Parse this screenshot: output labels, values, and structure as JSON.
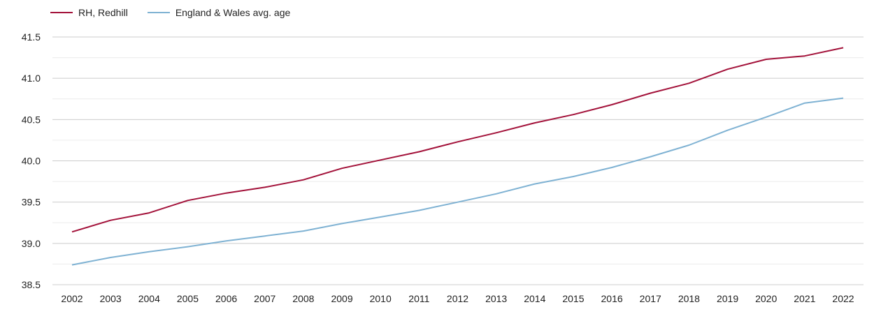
{
  "chart_data": {
    "type": "line",
    "title": "",
    "xlabel": "",
    "ylabel": "",
    "categories": [
      "2002",
      "2003",
      "2004",
      "2005",
      "2006",
      "2007",
      "2008",
      "2009",
      "2010",
      "2011",
      "2012",
      "2013",
      "2014",
      "2015",
      "2016",
      "2017",
      "2018",
      "2019",
      "2020",
      "2021",
      "2022"
    ],
    "series": [
      {
        "name": "RH, Redhill",
        "color": "#a3123a",
        "values": [
          39.14,
          39.28,
          39.37,
          39.52,
          39.61,
          39.68,
          39.77,
          39.91,
          40.01,
          40.11,
          40.23,
          40.34,
          40.46,
          40.56,
          40.68,
          40.82,
          40.94,
          41.11,
          41.23,
          41.27,
          41.37
        ]
      },
      {
        "name": "England & Wales avg. age",
        "color": "#7fb2d3",
        "values": [
          38.74,
          38.83,
          38.9,
          38.96,
          39.03,
          39.09,
          39.15,
          39.24,
          39.32,
          39.4,
          39.5,
          39.6,
          39.72,
          39.81,
          39.92,
          40.05,
          40.19,
          40.37,
          40.53,
          40.7,
          40.76
        ]
      }
    ],
    "ylim": [
      38.5,
      41.5
    ],
    "yticks": [
      "38.5",
      "39.0",
      "39.5",
      "40.0",
      "40.5",
      "41.0",
      "41.5"
    ],
    "grid": true,
    "legend": "top-left"
  }
}
